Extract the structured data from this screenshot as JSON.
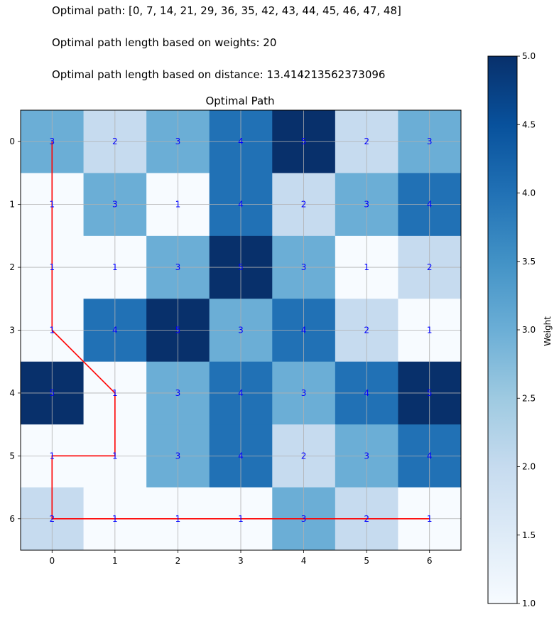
{
  "header": {
    "path_text": "Optimal path: [0, 7, 14, 21, 29, 36, 35, 42, 43, 44, 45, 46, 47, 48]",
    "weight_length_text": "Optimal path length based on weights: 20",
    "distance_length_text": "Optimal path length based on distance: 13.414213562373096"
  },
  "chart_data": {
    "type": "heatmap",
    "title": "Optimal Path",
    "xlabel": "",
    "ylabel": "",
    "x_ticks": [
      "0",
      "1",
      "2",
      "3",
      "4",
      "5",
      "6"
    ],
    "y_ticks": [
      "0",
      "1",
      "2",
      "3",
      "4",
      "5",
      "6"
    ],
    "grid": true,
    "colormap": "Blues",
    "vmin": 1,
    "vmax": 5,
    "colorbar": {
      "label": "Weight",
      "ticks": [
        "1.0",
        "1.5",
        "2.0",
        "2.5",
        "3.0",
        "3.5",
        "4.0",
        "4.5",
        "5.0"
      ],
      "tick_values": [
        1.0,
        1.5,
        2.0,
        2.5,
        3.0,
        3.5,
        4.0,
        4.5,
        5.0
      ]
    },
    "values": [
      [
        3,
        2,
        3,
        4,
        5,
        2,
        3
      ],
      [
        1,
        3,
        1,
        4,
        2,
        3,
        4
      ],
      [
        1,
        1,
        3,
        5,
        3,
        1,
        2
      ],
      [
        1,
        4,
        5,
        3,
        4,
        2,
        1
      ],
      [
        5,
        1,
        3,
        4,
        3,
        4,
        5
      ],
      [
        1,
        1,
        3,
        4,
        2,
        3,
        4
      ],
      [
        2,
        1,
        1,
        1,
        3,
        2,
        1
      ]
    ],
    "path": [
      [
        0,
        0
      ],
      [
        1,
        0
      ],
      [
        2,
        0
      ],
      [
        3,
        0
      ],
      [
        4,
        1
      ],
      [
        5,
        1
      ],
      [
        5,
        0
      ],
      [
        6,
        0
      ],
      [
        6,
        1
      ],
      [
        6,
        2
      ],
      [
        6,
        3
      ],
      [
        6,
        4
      ],
      [
        6,
        5
      ],
      [
        6,
        6
      ]
    ],
    "path_color": "#ff0000",
    "cell_label_color": "#0000ff"
  }
}
